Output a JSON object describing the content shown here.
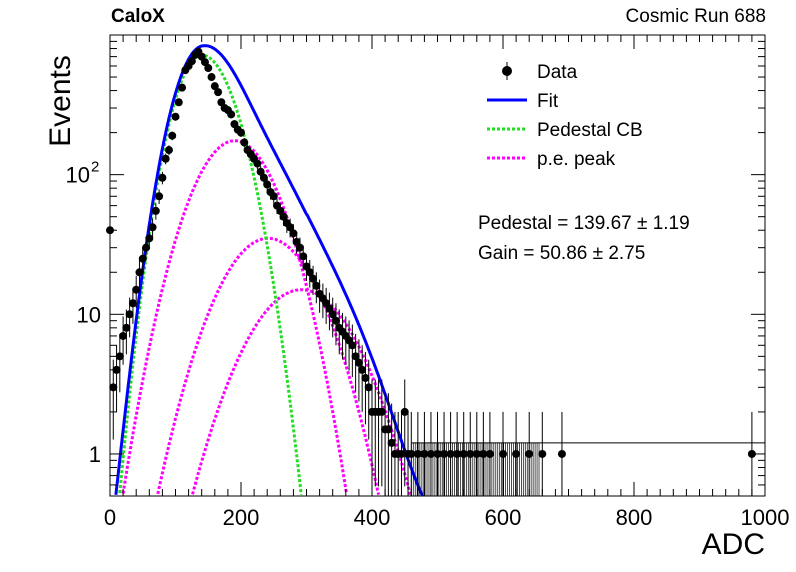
{
  "header": {
    "experiment": "CaloX",
    "run": "Cosmic Run 688"
  },
  "chart_data": {
    "type": "scatter",
    "title": "",
    "xlabel": "ADC",
    "ylabel": "Events",
    "xlim": [
      0,
      1000
    ],
    "ylim": [
      0.5,
      1000
    ],
    "yscale": "log",
    "xticks": [
      "0",
      "200",
      "400",
      "600",
      "800",
      "1000"
    ],
    "yticks": [
      {
        "value": 1,
        "label": "1"
      },
      {
        "value": 10,
        "label": "10"
      },
      {
        "value": 100,
        "label": "10",
        "exponent": "2"
      }
    ],
    "legend": {
      "placement": "top-right",
      "entries": [
        {
          "label": "Data",
          "color": "#000000",
          "style": "marker"
        },
        {
          "label": "Fit",
          "color": "#0000ff",
          "style": "solid"
        },
        {
          "label": "Pedestal CB",
          "color": "#22dd22",
          "style": "dotted"
        },
        {
          "label": "p.e. peak",
          "color": "#ff00ff",
          "style": "dotted"
        }
      ]
    },
    "annotations": [
      "Pedestal = 139.67 ± 1.19",
      "Gain = 50.86 ± 2.75"
    ],
    "data": {
      "x": [
        0,
        5,
        10,
        15,
        20,
        25,
        30,
        35,
        40,
        45,
        50,
        55,
        60,
        65,
        70,
        75,
        80,
        85,
        90,
        95,
        100,
        105,
        110,
        115,
        120,
        125,
        130,
        135,
        140,
        145,
        150,
        155,
        160,
        165,
        170,
        175,
        180,
        185,
        190,
        195,
        200,
        205,
        210,
        215,
        220,
        225,
        230,
        235,
        240,
        245,
        250,
        255,
        260,
        265,
        270,
        275,
        280,
        285,
        290,
        295,
        300,
        305,
        310,
        315,
        320,
        325,
        330,
        335,
        340,
        345,
        350,
        355,
        360,
        365,
        370,
        375,
        380,
        385,
        390,
        395,
        400,
        405,
        410,
        415,
        420,
        425,
        430,
        435,
        440,
        445,
        450,
        455,
        460,
        470,
        480,
        490,
        500,
        510,
        520,
        530,
        540,
        550,
        560,
        570,
        580,
        600,
        620,
        640,
        660,
        690,
        980
      ],
      "y": [
        40,
        3,
        4,
        5,
        7,
        8,
        10,
        12,
        15,
        20,
        25,
        30,
        35,
        42,
        55,
        70,
        95,
        130,
        150,
        190,
        260,
        330,
        420,
        560,
        600,
        650,
        720,
        760,
        700,
        640,
        580,
        500,
        430,
        390,
        330,
        300,
        290,
        270,
        230,
        210,
        200,
        170,
        150,
        140,
        130,
        120,
        105,
        95,
        85,
        75,
        70,
        60,
        55,
        50,
        45,
        42,
        38,
        33,
        30,
        26,
        22,
        20,
        18,
        16,
        14,
        13,
        12,
        11,
        10,
        9,
        8,
        7.5,
        7,
        6.5,
        6,
        5,
        4.5,
        4,
        3.5,
        3,
        2,
        2,
        2,
        2,
        1.5,
        1.5,
        1.2,
        1,
        1,
        1,
        2,
        1,
        1,
        1,
        1,
        1,
        1,
        1,
        1,
        1,
        1,
        1,
        1,
        1,
        1,
        1,
        1,
        1,
        1,
        1,
        1
      ]
    },
    "parameters": {
      "amplitude": 720,
      "pedestal": 139.67,
      "sigma_pedestal": 40,
      "gain": 50.86,
      "pe_peaks": [
        {
          "amplitude": 175,
          "sigma": 50
        },
        {
          "amplitude": 35,
          "sigma": 58
        },
        {
          "amplitude": 15,
          "sigma": 64
        }
      ]
    }
  }
}
